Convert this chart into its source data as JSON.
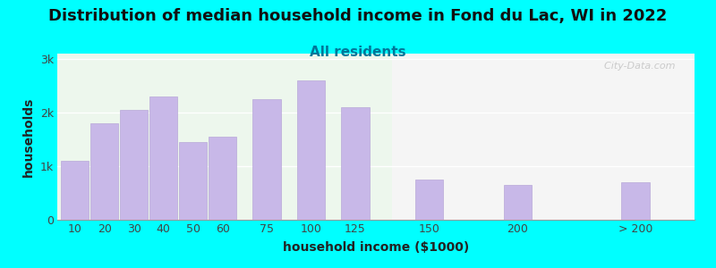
{
  "title": "Distribution of median household income in Fond du Lac, WI in 2022",
  "subtitle": "All residents",
  "xlabel": "household income ($1000)",
  "ylabel": "households",
  "background_color": "#00FFFF",
  "plot_bg_color_left": "#edf7ed",
  "plot_bg_color_right": "#f5f5f5",
  "bar_color": "#c8b8e8",
  "bar_edge_color": "#b8a8d8",
  "categories": [
    "10",
    "20",
    "30",
    "40",
    "50",
    "60",
    "75",
    "100",
    "125",
    "150",
    "200",
    "> 200"
  ],
  "values": [
    1100,
    1800,
    2050,
    2300,
    1450,
    1550,
    2250,
    2600,
    2100,
    750,
    650,
    700
  ],
  "yticks": [
    0,
    1000,
    2000,
    3000
  ],
  "ytick_labels": [
    "0",
    "1k",
    "2k",
    "3k"
  ],
  "ylim": [
    0,
    3100
  ],
  "title_fontsize": 13,
  "subtitle_fontsize": 11,
  "axis_label_fontsize": 10,
  "tick_fontsize": 9,
  "watermark": "  City-Data.com"
}
